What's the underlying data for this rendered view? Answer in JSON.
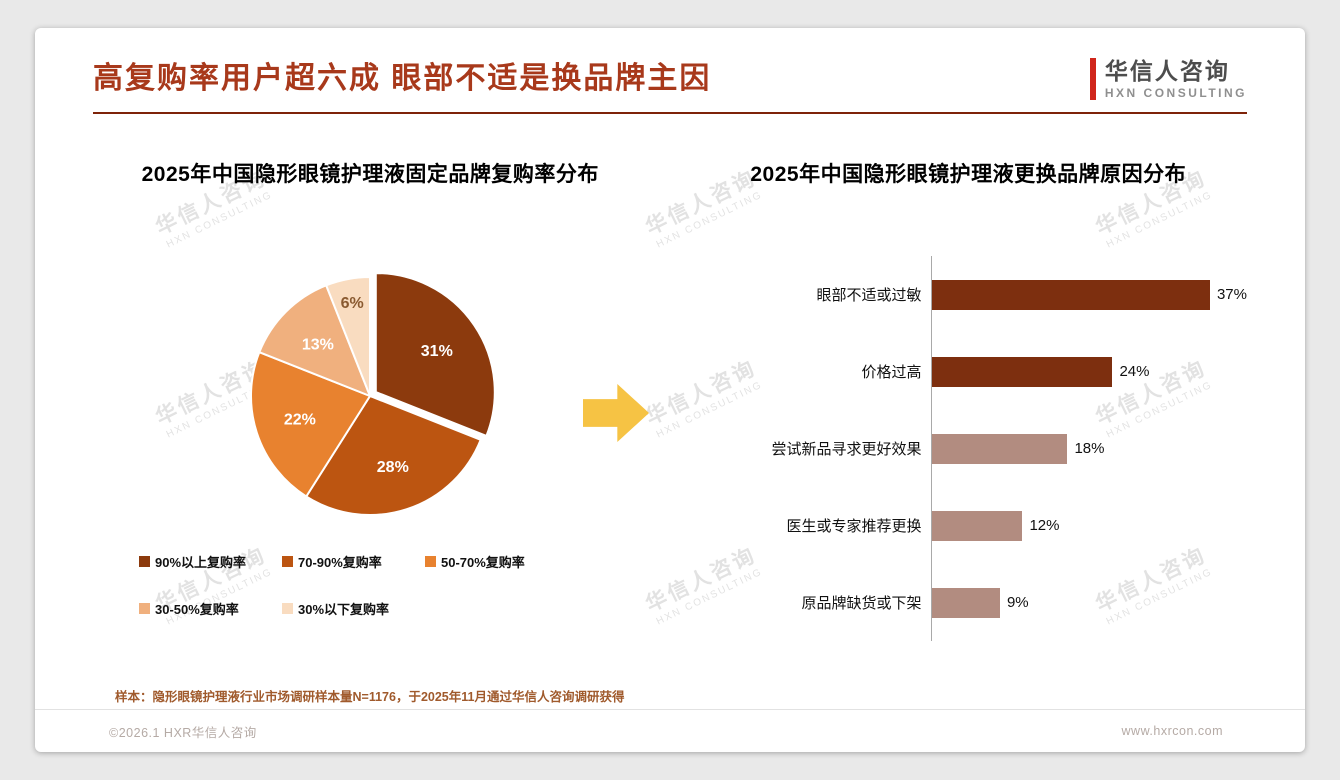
{
  "page": {
    "title": "高复购率用户超六成 眼部不适是换品牌主因",
    "sample_note": "样本：隐形眼镜护理液行业市场调研样本量N=1176，于2025年11月通过华信人咨询调研获得",
    "footer_left": "©2026.1 HXR华信人咨询",
    "footer_right": "www.hxrcon.com"
  },
  "logo": {
    "name": "华信人咨询",
    "sub": "HXN CONSULTING"
  },
  "watermark": {
    "line1": "华信人咨询",
    "line2": "HXN CONSULTING"
  },
  "chart_data": [
    {
      "type": "pie",
      "title": "2025年中国隐形眼镜护理液固定品牌复购率分布",
      "labels": [
        "90%以上复购率",
        "70-90%复购率",
        "50-70%复购率",
        "30-50%复购率",
        "30%以下复购率"
      ],
      "values": [
        31,
        28,
        22,
        13,
        6
      ],
      "value_suffix": "%",
      "colors": [
        "#8C3A0D",
        "#BC5511",
        "#E8822F",
        "#F0B07E",
        "#F9DCC0"
      ],
      "value_label_colors": [
        "#ffffff",
        "#ffffff",
        "#ffffff",
        "#ffffff",
        "#8a5a30"
      ],
      "legend_position": "bottom",
      "start_angle": "12-oclock-clockwise"
    },
    {
      "type": "bar",
      "title": "2025年中国隐形眼镜护理液更换品牌原因分布",
      "orientation": "horizontal",
      "categories": [
        "眼部不适或过敏",
        "价格过高",
        "尝试新品寻求更好效果",
        "医生或专家推荐更换",
        "原品牌缺货或下架"
      ],
      "values": [
        37,
        24,
        18,
        12,
        9
      ],
      "value_suffix": "%",
      "colors": [
        "#7D2F0F",
        "#7D2F0F",
        "#B28C80",
        "#B28C80",
        "#B28C80"
      ],
      "xlim": [
        0,
        40
      ],
      "grid": false,
      "axis_line": "left-vertical"
    }
  ]
}
